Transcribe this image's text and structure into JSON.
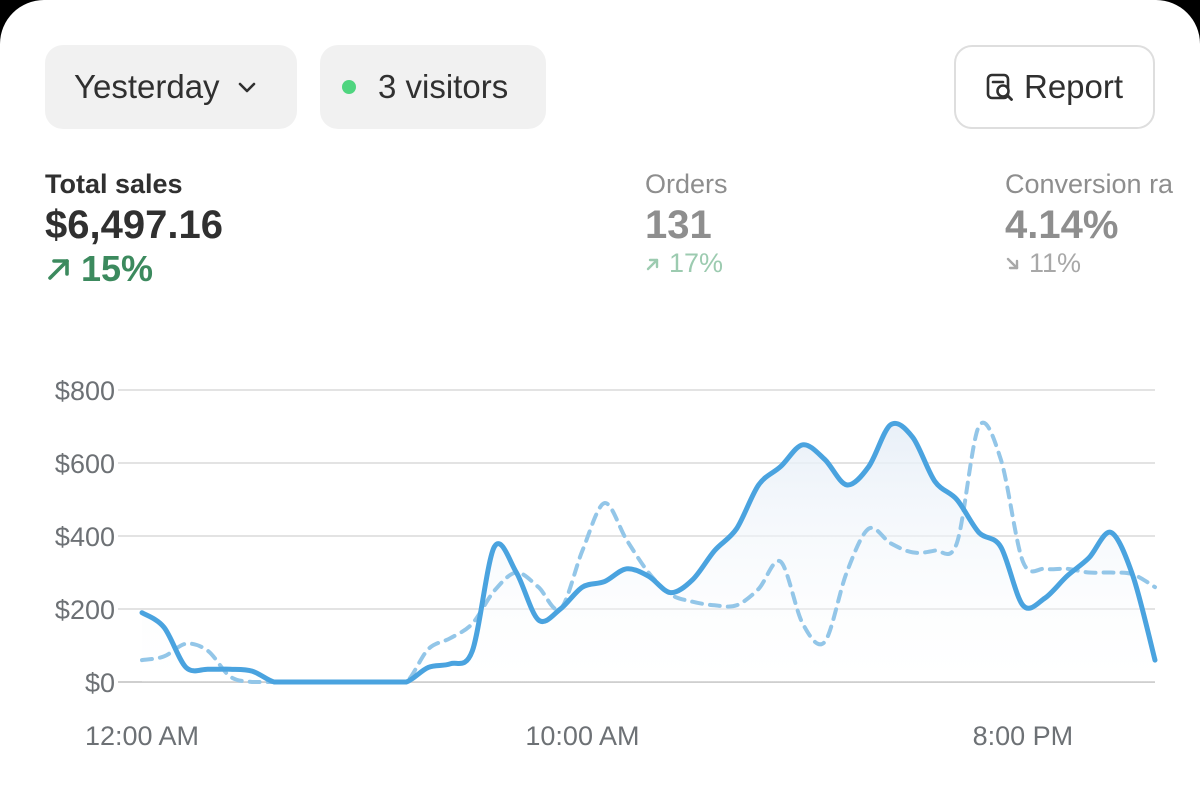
{
  "filters": {
    "date_label": "Yesterday",
    "visitors_label": "3 visitors",
    "report_label": "Report",
    "live_dot_color": "#4fd57f"
  },
  "icons": {
    "date_chevron": "chevron-down-icon",
    "report": "report-search-icon",
    "sales_trend": "arrow-up-right-icon",
    "orders_trend": "arrow-up-right-icon",
    "conversion_trend": "arrow-down-right-icon"
  },
  "metrics": {
    "sales": {
      "label": "Total sales",
      "value": "$6,497.16",
      "change": "15%",
      "direction": "up",
      "color": "#3c8a5e"
    },
    "orders": {
      "label": "Orders",
      "value": "131",
      "change": "17%",
      "direction": "up"
    },
    "conversion": {
      "label": "Conversion ra",
      "value": "4.14%",
      "change": "11%",
      "direction": "down"
    }
  },
  "chart_data": {
    "type": "line",
    "title": "",
    "xlabel": "",
    "ylabel": "",
    "ylim": [
      0,
      800
    ],
    "y_ticks": [
      {
        "value": 800,
        "label": "$800"
      },
      {
        "value": 600,
        "label": "$600"
      },
      {
        "value": 400,
        "label": "$400"
      },
      {
        "value": 200,
        "label": "$200"
      },
      {
        "value": 0,
        "label": "$0"
      }
    ],
    "x_ticks": [
      {
        "hour": 0,
        "label": "12:00 AM"
      },
      {
        "hour": 10,
        "label": "10:00 AM"
      },
      {
        "hour": 20,
        "label": "8:00 PM"
      }
    ],
    "grid": true,
    "legend": "none",
    "hours": [
      0,
      0.5,
      1,
      1.5,
      2,
      2.5,
      3,
      3.5,
      4,
      4.5,
      5,
      5.5,
      6,
      6.5,
      7,
      7.5,
      8,
      8.5,
      9,
      9.5,
      10,
      10.5,
      11,
      11.5,
      12,
      12.5,
      13,
      13.5,
      14,
      14.5,
      15,
      15.5,
      16,
      16.5,
      17,
      17.5,
      18,
      18.5,
      19,
      19.5,
      20,
      20.5,
      21,
      21.5,
      22,
      22.5,
      23
    ],
    "series": [
      {
        "style": "solid",
        "color": "#4aa3df",
        "values": [
          190,
          150,
          40,
          35,
          35,
          30,
          0,
          0,
          0,
          0,
          0,
          0,
          0,
          40,
          50,
          85,
          370,
          300,
          170,
          200,
          260,
          275,
          310,
          290,
          245,
          280,
          360,
          420,
          540,
          590,
          650,
          610,
          540,
          590,
          705,
          670,
          550,
          500,
          410,
          370,
          210,
          230,
          290,
          340,
          410,
          290,
          60
        ]
      },
      {
        "style": "dashed",
        "color": "#93c6e8",
        "values": [
          60,
          70,
          105,
          85,
          15,
          0,
          0,
          0,
          0,
          0,
          0,
          0,
          0,
          90,
          120,
          160,
          250,
          300,
          260,
          200,
          360,
          490,
          390,
          300,
          240,
          220,
          210,
          210,
          255,
          330,
          160,
          110,
          300,
          420,
          380,
          355,
          360,
          380,
          700,
          610,
          330,
          310,
          310,
          300,
          300,
          295,
          260
        ]
      }
    ]
  }
}
